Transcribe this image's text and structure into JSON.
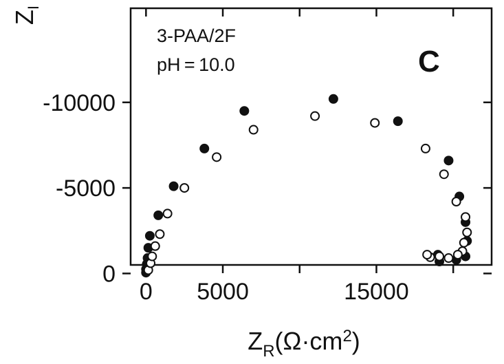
{
  "chart_data": {
    "type": "scatter",
    "panel_label": "C",
    "annotations": [
      "3-PAA/2F",
      "pH = 10.0"
    ],
    "xlabel_main": "Z",
    "xlabel_sub": "R",
    "xlabel_unit_open": "(Ω·cm",
    "xlabel_unit_sup": "2",
    "xlabel_unit_close": ")",
    "ylabel_main": "Z",
    "ylabel_sub": "I",
    "xlim": [
      -1000,
      22500
    ],
    "ylim": [
      -500,
      -15500
    ],
    "x_ticks": [
      0,
      5000,
      10000,
      15000,
      20000
    ],
    "x_tick_labels": [
      "0",
      "5000",
      "",
      "15000",
      ""
    ],
    "y_ticks": [
      0,
      -5000,
      -10000
    ],
    "y_tick_labels": [
      "0",
      "-5000",
      "-10000"
    ],
    "grid": false,
    "series": [
      {
        "marker": "filled",
        "color": "#111111",
        "points": [
          [
            0,
            -50
          ],
          [
            0,
            -250
          ],
          [
            50,
            -550
          ],
          [
            100,
            -900
          ],
          [
            150,
            -1500
          ],
          [
            250,
            -2200
          ],
          [
            800,
            -3400
          ],
          [
            1800,
            -5100
          ],
          [
            3800,
            -7300
          ],
          [
            6400,
            -9500
          ],
          [
            12200,
            -10200
          ],
          [
            16400,
            -8900
          ],
          [
            19700,
            -6600
          ],
          [
            20400,
            -4500
          ],
          [
            20800,
            -3000
          ],
          [
            20900,
            -1900
          ],
          [
            20800,
            -1000
          ],
          [
            20200,
            -800
          ],
          [
            19100,
            -700
          ],
          [
            19000,
            -1100
          ]
        ]
      },
      {
        "marker": "open",
        "color": "#111111",
        "points": [
          [
            150,
            -200
          ],
          [
            300,
            -600
          ],
          [
            400,
            -1000
          ],
          [
            600,
            -1600
          ],
          [
            900,
            -2300
          ],
          [
            1400,
            -3500
          ],
          [
            2500,
            -5000
          ],
          [
            4600,
            -6800
          ],
          [
            7000,
            -8400
          ],
          [
            11000,
            -9200
          ],
          [
            14900,
            -8800
          ],
          [
            18200,
            -7300
          ],
          [
            19400,
            -5800
          ],
          [
            20200,
            -4200
          ],
          [
            20800,
            -3300
          ],
          [
            20900,
            -2400
          ],
          [
            20700,
            -1800
          ],
          [
            20600,
            -1300
          ],
          [
            20300,
            -1100
          ],
          [
            19700,
            -900
          ],
          [
            19100,
            -1000
          ],
          [
            18500,
            -950
          ],
          [
            18300,
            -1100
          ]
        ]
      }
    ]
  }
}
